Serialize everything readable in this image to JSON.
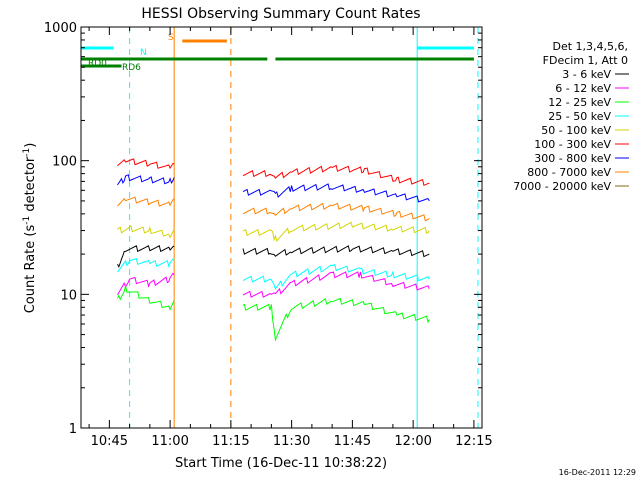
{
  "chart_data": {
    "type": "line",
    "title": "HESSI Observing Summary Count Rates",
    "xlabel": "Start Time (16-Dec-11 10:38:22)",
    "ylabel_prefix": "Count Rate (s",
    "ylabel_sup": "-1",
    "ylabel_middle": " detector",
    "ylabel_suffix": ")",
    "x_time_start": "10:38:22",
    "xlim": [
      "10:38",
      "12:17"
    ],
    "ylim": [
      1,
      1000
    ],
    "yscale": "log",
    "x_ticks": [
      "10:45",
      "11:00",
      "11:15",
      "11:30",
      "11:45",
      "12:00",
      "12:15"
    ],
    "y_ticks": [
      "1",
      "10",
      "100",
      "1000"
    ],
    "legend_header": [
      "Det 1,3,4,5,6,",
      "FDecim 1, Att 0"
    ],
    "legend_position": "right",
    "series": [
      {
        "name": "3 - 6 keV",
        "color": "#000000",
        "segments": [
          {
            "x": [
              "10:47",
              "10:49",
              "10:55",
              "11:00",
              "11:01"
            ],
            "y": [
              16,
              22,
              22,
              22,
              23
            ]
          },
          {
            "x": [
              "11:18",
              "11:25",
              "11:26",
              "11:30",
              "11:45",
              "11:55",
              "12:04"
            ],
            "y": [
              21,
              21,
              20,
              21,
              22,
              21,
              20
            ]
          }
        ]
      },
      {
        "name": "6 - 12 keV",
        "color": "#ff00ff",
        "segments": [
          {
            "x": [
              "10:47",
              "10:50",
              "10:55",
              "11:00",
              "11:01"
            ],
            "y": [
              10,
              13,
              12,
              13,
              14
            ]
          },
          {
            "x": [
              "11:18",
              "11:25",
              "11:26",
              "11:30",
              "11:40",
              "11:47",
              "11:55",
              "12:04"
            ],
            "y": [
              10,
              10,
              10,
              12,
              14,
              14,
              12,
              11
            ]
          }
        ]
      },
      {
        "name": "12 - 25 keV",
        "color": "#00ff00",
        "segments": [
          {
            "x": [
              "10:47",
              "10:49",
              "10:55",
              "11:00",
              "11:01"
            ],
            "y": [
              9,
              11,
              9,
              8,
              9
            ]
          },
          {
            "x": [
              "11:18",
              "11:25",
              "11:26",
              "11:30",
              "11:40",
              "11:48",
              "11:56",
              "12:04"
            ],
            "y": [
              8,
              8,
              4.8,
              8,
              9,
              8.5,
              7,
              6.5
            ]
          }
        ]
      },
      {
        "name": "25 - 50 keV",
        "color": "#00ffff",
        "segments": [
          {
            "x": [
              "10:47",
              "10:50",
              "10:55",
              "11:00",
              "11:01"
            ],
            "y": [
              15,
              18,
              17,
              17,
              18
            ]
          },
          {
            "x": [
              "11:18",
              "11:25",
              "11:26",
              "11:30",
              "11:40",
              "11:47",
              "11:55",
              "12:04"
            ],
            "y": [
              13,
              13,
              11,
              14,
              16,
              15,
              14,
              13
            ]
          }
        ]
      },
      {
        "name": "50 - 100 keV",
        "color": "#d4d400",
        "segments": [
          {
            "x": [
              "10:47",
              "10:50",
              "10:55",
              "11:00",
              "11:01"
            ],
            "y": [
              30,
              31,
              30,
              28,
              31
            ]
          },
          {
            "x": [
              "11:18",
              "11:25",
              "11:26",
              "11:30",
              "11:45",
              "11:55",
              "12:04"
            ],
            "y": [
              29,
              29,
              26,
              31,
              33,
              31,
              30
            ]
          }
        ]
      },
      {
        "name": "100 - 300 keV",
        "color": "#ff0000",
        "segments": [
          {
            "x": [
              "10:47",
              "10:49",
              "10:55",
              "11:00",
              "11:01"
            ],
            "y": [
              95,
              100,
              95,
              88,
              95
            ]
          },
          {
            "x": [
              "11:18",
              "11:25",
              "11:26",
              "11:30",
              "11:40",
              "11:48",
              "11:56",
              "12:04"
            ],
            "y": [
              80,
              80,
              75,
              82,
              88,
              85,
              72,
              68
            ]
          }
        ]
      },
      {
        "name": "300 - 800 keV",
        "color": "#0000ff",
        "segments": [
          {
            "x": [
              "10:47",
              "10:49",
              "10:55",
              "11:00",
              "11:01"
            ],
            "y": [
              65,
              75,
              72,
              70,
              75
            ]
          },
          {
            "x": [
              "11:18",
              "11:25",
              "11:26",
              "11:30",
              "11:40",
              "11:48",
              "11:56",
              "12:04"
            ],
            "y": [
              58,
              58,
              55,
              62,
              64,
              60,
              55,
              50
            ]
          }
        ]
      },
      {
        "name": "800 - 7000 keV",
        "color": "#ff8000",
        "segments": [
          {
            "x": [
              "10:47",
              "10:49",
              "10:55",
              "11:00",
              "11:01"
            ],
            "y": [
              48,
              52,
              49,
              47,
              52
            ]
          },
          {
            "x": [
              "11:18",
              "11:25",
              "11:26",
              "11:30",
              "11:40",
              "11:48",
              "11:56",
              "12:04"
            ],
            "y": [
              42,
              42,
              40,
              44,
              46,
              44,
              40,
              37
            ]
          }
        ]
      },
      {
        "name": "7000 - 20000 keV",
        "color": "#8b6914",
        "segments": []
      }
    ],
    "flags": [
      {
        "label": "N",
        "color": "#00ffff",
        "ranges": [
          [
            "10:38",
            "10:46"
          ]
        ]
      },
      {
        "label": "",
        "color": "#00ffff",
        "ranges": [
          [
            "12:01",
            "12:15"
          ]
        ]
      },
      {
        "label": "S",
        "color": "#ff8000",
        "ranges": [
          [
            "11:03",
            "11:14"
          ]
        ]
      },
      {
        "label": "RD0",
        "color": "#008000",
        "ranges": [
          [
            "10:38",
            "11:24"
          ],
          [
            "11:26",
            "12:15"
          ]
        ]
      },
      {
        "label": "RD6",
        "color": "#008000",
        "ranges": [
          [
            "10:38",
            "10:48"
          ]
        ]
      }
    ],
    "vlines": [
      {
        "x": "10:50",
        "color": "#00ffff",
        "style": "dashed"
      },
      {
        "x": "11:15",
        "color": "#ff8000",
        "style": "dashed"
      },
      {
        "x": "11:01",
        "color": "#ff8000",
        "style": "solid"
      },
      {
        "x": "12:01",
        "color": "#00ffff",
        "style": "solid"
      },
      {
        "x": "12:16",
        "color": "#00ffff",
        "style": "dashed"
      }
    ],
    "timestamp": "16-Dec-2011 12:29"
  }
}
